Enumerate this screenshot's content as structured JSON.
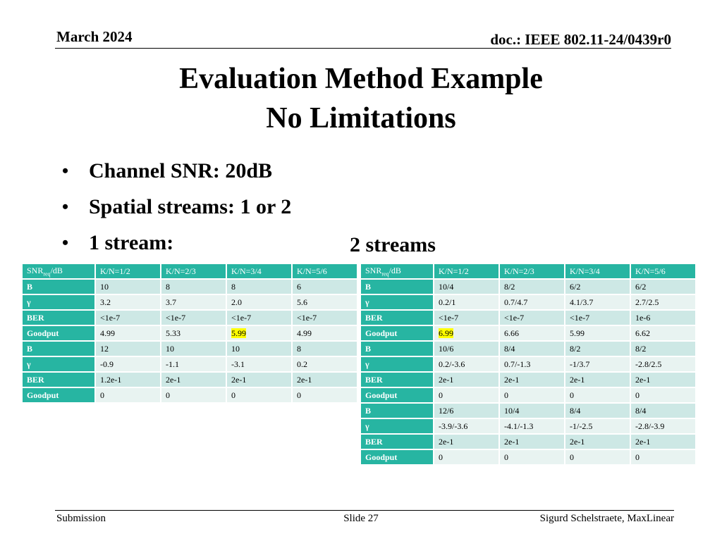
{
  "header": {
    "date": "March 2024",
    "doc": "doc.: IEEE 802.11-24/0439r0"
  },
  "title": {
    "line1": "Evaluation Method Example",
    "line2": "No Limitations"
  },
  "bullets": [
    "Channel SNR: 20dB",
    "Spatial streams: 1 or 2",
    "1 stream:"
  ],
  "streams2_label": "2 streams",
  "table1": {
    "corner": {
      "main": "SNR",
      "sub": "req",
      "tail": "/dB"
    },
    "columns": [
      "K/N=1/2",
      "K/N=2/3",
      "K/N=3/4",
      "K/N=5/6"
    ],
    "rows": [
      {
        "label": "B",
        "cells": [
          "10",
          "8",
          "8",
          "6"
        ]
      },
      {
        "label": "γ",
        "cells": [
          "3.2",
          "3.7",
          "2.0",
          "5.6"
        ]
      },
      {
        "label": "BER",
        "cells": [
          "<1e-7",
          "<1e-7",
          "<1e-7",
          "<1e-7"
        ]
      },
      {
        "label": "Goodput",
        "cells": [
          "4.99",
          "5.33",
          "5.99",
          "4.99"
        ],
        "highlight": 2
      },
      {
        "label": "B",
        "cells": [
          "12",
          "10",
          "10",
          "8"
        ]
      },
      {
        "label": "γ",
        "cells": [
          "-0.9",
          "-1.1",
          "-3.1",
          "0.2"
        ]
      },
      {
        "label": "BER",
        "cells": [
          "1.2e-1",
          "2e-1",
          "2e-1",
          "2e-1"
        ]
      },
      {
        "label": "Goodput",
        "cells": [
          "0",
          "0",
          "0",
          "0"
        ]
      }
    ]
  },
  "table2": {
    "corner": {
      "main": "SNR",
      "sub": "req",
      "tail": "/dB"
    },
    "columns": [
      "K/N=1/2",
      "K/N=2/3",
      "K/N=3/4",
      "K/N=5/6"
    ],
    "rows": [
      {
        "label": "B",
        "cells": [
          "10/4",
          "8/2",
          "6/2",
          "6/2"
        ]
      },
      {
        "label": "γ",
        "cells": [
          "0.2/1",
          "0.7/4.7",
          "4.1/3.7",
          "2.7/2.5"
        ]
      },
      {
        "label": "BER",
        "cells": [
          "<1e-7",
          "<1e-7",
          "<1e-7",
          "1e-6"
        ]
      },
      {
        "label": "Goodput",
        "cells": [
          "6.99",
          "6.66",
          "5.99",
          "6.62"
        ],
        "highlight": 0
      },
      {
        "label": "B",
        "cells": [
          "10/6",
          "8/4",
          "8/2",
          "8/2"
        ]
      },
      {
        "label": "γ",
        "cells": [
          "0.2/-3.6",
          "0.7/-1.3",
          "-1/3.7",
          "-2.8/2.5"
        ]
      },
      {
        "label": "BER",
        "cells": [
          "2e-1",
          "2e-1",
          "2e-1",
          "2e-1"
        ]
      },
      {
        "label": "Goodput",
        "cells": [
          "0",
          "0",
          "0",
          "0"
        ]
      },
      {
        "label": "B",
        "cells": [
          "12/6",
          "10/4",
          "8/4",
          "8/4"
        ]
      },
      {
        "label": "γ",
        "cells": [
          "-3.9/-3.6",
          "-4.1/-1.3",
          "-1/-2.5",
          "-2.8/-3.9"
        ]
      },
      {
        "label": "BER",
        "cells": [
          "2e-1",
          "2e-1",
          "2e-1",
          "2e-1"
        ]
      },
      {
        "label": "Goodput",
        "cells": [
          "0",
          "0",
          "0",
          "0"
        ]
      }
    ]
  },
  "colors": {
    "header_teal": "#27b5a2",
    "row_dark": "#cde8e5",
    "row_light": "#e8f3f1",
    "highlight": "#ffff00"
  },
  "footer": {
    "left": "Submission",
    "center": "Slide 27",
    "right": "Sigurd Schelstraete, MaxLinear"
  }
}
